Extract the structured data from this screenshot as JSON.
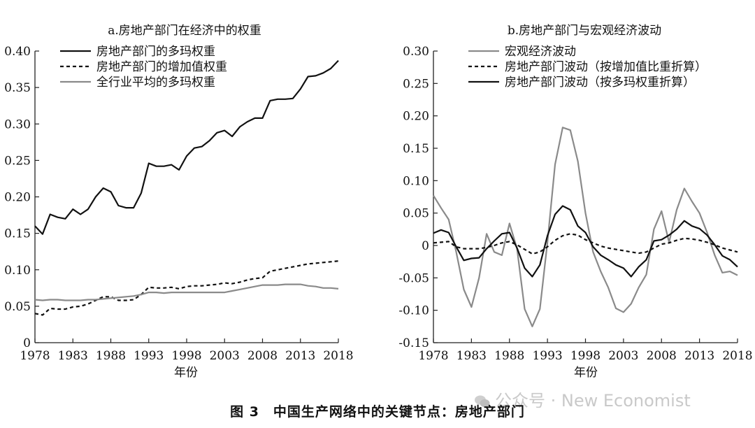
{
  "figure": {
    "caption": "图 3　中国生产网络中的关键节点：房地产部门",
    "watermark": "公众号 · New Economist",
    "watermark_icon": "wechat-logo-icon"
  },
  "chart_data": [
    {
      "type": "line",
      "title": "a.房地产部门在经济中的权重",
      "xlabel": "年份",
      "ylabel": "",
      "xlim": [
        1978,
        2018
      ],
      "ylim": [
        0,
        0.4
      ],
      "xticks": [
        1978,
        1983,
        1988,
        1993,
        1998,
        2003,
        2008,
        2013,
        2018
      ],
      "yticks": [
        0,
        0.05,
        0.1,
        0.15,
        0.2,
        0.25,
        0.3,
        0.35,
        0.4
      ],
      "ytick_labels": [
        "0",
        "0.05",
        "0.10",
        "0.15",
        "0.20",
        "0.25",
        "0.30",
        "0.35",
        "0.40"
      ],
      "legend_position": "top-left",
      "grid": false,
      "x": [
        1978,
        1979,
        1980,
        1981,
        1982,
        1983,
        1984,
        1985,
        1986,
        1987,
        1988,
        1989,
        1990,
        1991,
        1992,
        1993,
        1994,
        1995,
        1996,
        1997,
        1998,
        1999,
        2000,
        2001,
        2002,
        2003,
        2004,
        2005,
        2006,
        2007,
        2008,
        2009,
        2010,
        2011,
        2012,
        2013,
        2014,
        2015,
        2016,
        2017,
        2018
      ],
      "series": [
        {
          "name": "房地产部门的多玛权重",
          "color": "#111111",
          "style": "solid",
          "values": [
            0.16,
            0.149,
            0.176,
            0.172,
            0.17,
            0.183,
            0.176,
            0.183,
            0.2,
            0.212,
            0.207,
            0.188,
            0.185,
            0.185,
            0.205,
            0.246,
            0.242,
            0.242,
            0.244,
            0.237,
            0.256,
            0.267,
            0.269,
            0.277,
            0.288,
            0.291,
            0.283,
            0.296,
            0.303,
            0.308,
            0.308,
            0.332,
            0.334,
            0.334,
            0.335,
            0.348,
            0.365,
            0.366,
            0.37,
            0.376,
            0.387
          ]
        },
        {
          "name": "房地产部门的增加值权重",
          "color": "#111111",
          "style": "dashed",
          "values": [
            0.04,
            0.038,
            0.047,
            0.046,
            0.046,
            0.049,
            0.05,
            0.053,
            0.058,
            0.063,
            0.063,
            0.058,
            0.058,
            0.059,
            0.066,
            0.076,
            0.075,
            0.075,
            0.076,
            0.074,
            0.077,
            0.078,
            0.078,
            0.079,
            0.08,
            0.082,
            0.081,
            0.083,
            0.086,
            0.088,
            0.089,
            0.098,
            0.1,
            0.102,
            0.104,
            0.106,
            0.108,
            0.109,
            0.11,
            0.111,
            0.112
          ]
        },
        {
          "name": "全行业平均的多玛权重",
          "color": "#8a8a8a",
          "style": "solid",
          "values": [
            0.059,
            0.058,
            0.059,
            0.059,
            0.058,
            0.058,
            0.058,
            0.059,
            0.059,
            0.06,
            0.061,
            0.062,
            0.063,
            0.064,
            0.066,
            0.069,
            0.069,
            0.068,
            0.069,
            0.069,
            0.069,
            0.069,
            0.069,
            0.069,
            0.069,
            0.069,
            0.071,
            0.073,
            0.075,
            0.077,
            0.079,
            0.079,
            0.079,
            0.08,
            0.08,
            0.08,
            0.078,
            0.077,
            0.075,
            0.075,
            0.074
          ]
        }
      ]
    },
    {
      "type": "line",
      "title": "b.房地产部门与宏观经济波动",
      "xlabel": "年份",
      "ylabel": "",
      "xlim": [
        1978,
        2018
      ],
      "ylim": [
        -0.15,
        0.3
      ],
      "xticks": [
        1978,
        1983,
        1988,
        1993,
        1998,
        2003,
        2008,
        2013,
        2018
      ],
      "yticks": [
        -0.15,
        -0.1,
        -0.05,
        0,
        0.05,
        0.1,
        0.15,
        0.2,
        0.25,
        0.3
      ],
      "ytick_labels": [
        "-0.15",
        "-0.10",
        "-0.05",
        "0",
        "0.05",
        "0.10",
        "0.15",
        "0.20",
        "0.25",
        "0.30"
      ],
      "legend_position": "top-left",
      "grid": false,
      "x": [
        1978,
        1979,
        1980,
        1981,
        1982,
        1983,
        1984,
        1985,
        1986,
        1987,
        1988,
        1989,
        1990,
        1991,
        1992,
        1993,
        1994,
        1995,
        1996,
        1997,
        1998,
        1999,
        2000,
        2001,
        2002,
        2003,
        2004,
        2005,
        2006,
        2007,
        2008,
        2009,
        2010,
        2011,
        2012,
        2013,
        2014,
        2015,
        2016,
        2017,
        2018
      ],
      "series": [
        {
          "name": "宏观经济波动",
          "color": "#8a8a8a",
          "style": "solid",
          "values": [
            0.077,
            0.058,
            0.04,
            -0.01,
            -0.068,
            -0.095,
            -0.05,
            0.018,
            -0.01,
            -0.015,
            0.034,
            -0.005,
            -0.098,
            -0.125,
            -0.098,
            0.005,
            0.125,
            0.182,
            0.178,
            0.13,
            0.05,
            -0.01,
            -0.04,
            -0.065,
            -0.097,
            -0.103,
            -0.09,
            -0.065,
            -0.045,
            0.025,
            0.053,
            0.005,
            0.055,
            0.088,
            0.068,
            0.05,
            0.02,
            -0.015,
            -0.042,
            -0.04,
            -0.046
          ]
        },
        {
          "name": "房地产部门波动（按增加值比重折算）",
          "color": "#111111",
          "style": "dashed",
          "values": [
            0.004,
            0.005,
            0.006,
            -0.002,
            -0.005,
            -0.005,
            -0.005,
            -0.003,
            0.0,
            0.004,
            0.006,
            0.001,
            -0.006,
            -0.013,
            -0.01,
            -0.002,
            0.008,
            0.015,
            0.018,
            0.016,
            0.009,
            0.004,
            -0.001,
            -0.004,
            -0.006,
            -0.008,
            -0.01,
            -0.012,
            -0.01,
            -0.004,
            0.002,
            0.004,
            0.008,
            0.011,
            0.01,
            0.008,
            0.005,
            0.001,
            -0.004,
            -0.007,
            -0.01
          ]
        },
        {
          "name": "房地产部门波动（按多玛权重折算）",
          "color": "#111111",
          "style": "solid",
          "values": [
            0.019,
            0.024,
            0.02,
            -0.002,
            -0.023,
            -0.02,
            -0.019,
            -0.005,
            0.007,
            0.018,
            0.02,
            -0.004,
            -0.035,
            -0.048,
            -0.03,
            0.015,
            0.048,
            0.061,
            0.055,
            0.03,
            0.02,
            -0.002,
            -0.015,
            -0.022,
            -0.03,
            -0.035,
            -0.048,
            -0.033,
            -0.022,
            0.007,
            0.009,
            0.016,
            0.025,
            0.038,
            0.03,
            0.026,
            0.016,
            0.001,
            -0.016,
            -0.022,
            -0.033
          ]
        }
      ]
    }
  ]
}
